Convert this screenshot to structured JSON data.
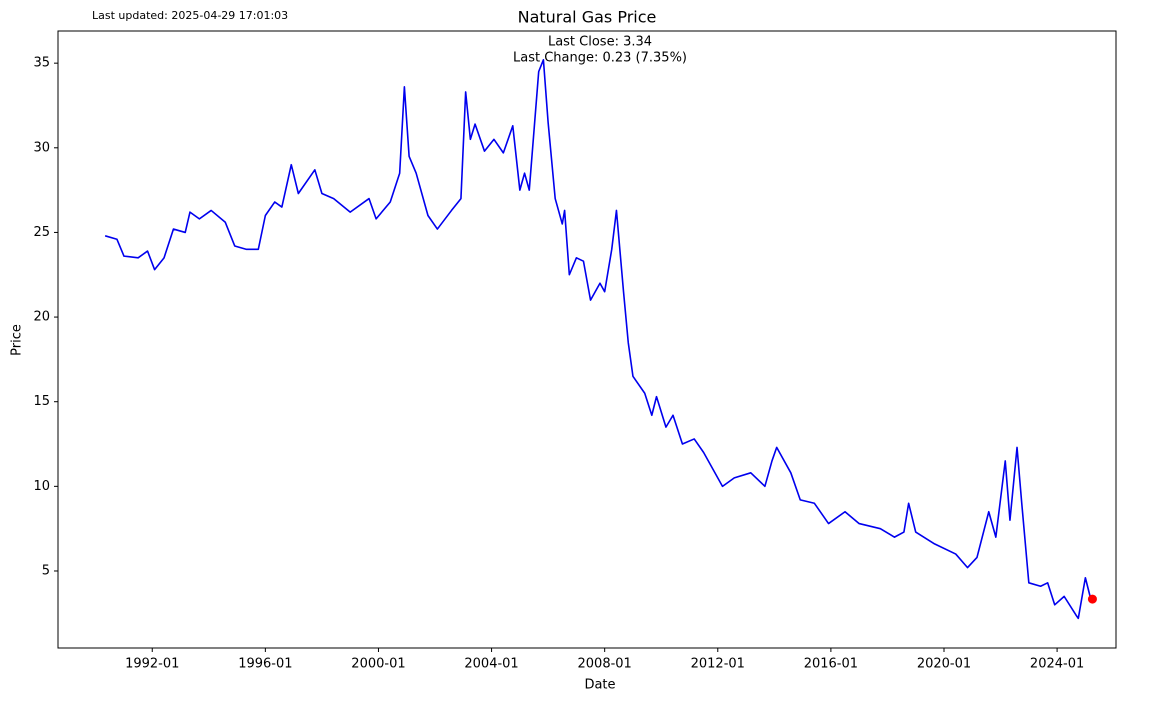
{
  "updated": "Last updated: 2025-04-29 17:01:03",
  "chart_data": {
    "type": "line",
    "title": "Natural Gas Price",
    "annotations": [
      "Last Close: 3.34",
      "Last Change: 0.23 (7.35%)"
    ],
    "x_label": "Date",
    "y_label": "Price",
    "x": [
      "1990-05",
      "1990-10",
      "1991-01",
      "1991-07",
      "1991-11",
      "1992-02",
      "1992-06",
      "1992-10",
      "1993-03",
      "1993-05",
      "1993-09",
      "1994-02",
      "1994-08",
      "1994-12",
      "1995-05",
      "1995-10",
      "1996-01",
      "1996-05",
      "1996-08",
      "1996-12",
      "1997-03",
      "1997-10",
      "1998-01",
      "1998-06",
      "1999-01",
      "1999-09",
      "1999-12",
      "2000-06",
      "2000-10",
      "2000-12",
      "2001-02",
      "2001-05",
      "2001-10",
      "2002-02",
      "2002-08",
      "2002-12",
      "2003-02",
      "2003-04",
      "2003-06",
      "2003-10",
      "2004-02",
      "2004-06",
      "2004-10",
      "2005-01",
      "2005-03",
      "2005-05",
      "2005-09",
      "2005-11",
      "2006-01",
      "2006-04",
      "2006-07",
      "2006-08",
      "2006-10",
      "2007-01",
      "2007-04",
      "2007-07",
      "2007-11",
      "2008-01",
      "2008-04",
      "2008-06",
      "2008-09",
      "2008-11",
      "2009-01",
      "2009-06",
      "2009-09",
      "2009-11",
      "2010-03",
      "2010-06",
      "2010-10",
      "2011-03",
      "2011-07",
      "2012-03",
      "2012-08",
      "2013-03",
      "2013-09",
      "2013-12",
      "2014-02",
      "2014-08",
      "2014-12",
      "2015-06",
      "2015-12",
      "2016-07",
      "2017-01",
      "2017-10",
      "2018-04",
      "2018-08",
      "2018-10",
      "2019-01",
      "2019-09",
      "2020-06",
      "2020-11",
      "2021-03",
      "2021-08",
      "2021-11",
      "2022-03",
      "2022-05",
      "2022-08",
      "2022-10",
      "2023-01",
      "2023-06",
      "2023-09",
      "2023-12",
      "2024-04",
      "2024-09",
      "2024-10",
      "2025-01",
      "2025-03",
      "2025-04"
    ],
    "series": [
      {
        "color": "#0000ee",
        "marker_color": "#ff0000",
        "values": [
          24.8,
          24.6,
          23.6,
          23.5,
          23.9,
          22.8,
          23.5,
          25.2,
          25.0,
          26.2,
          25.8,
          26.3,
          25.6,
          24.2,
          24.0,
          24.0,
          26.0,
          26.8,
          26.5,
          29.0,
          27.3,
          28.7,
          27.3,
          27.0,
          26.2,
          27.0,
          25.8,
          26.8,
          28.5,
          33.6,
          29.5,
          28.5,
          26.0,
          25.2,
          26.3,
          27.0,
          33.3,
          30.5,
          31.4,
          29.8,
          30.5,
          29.7,
          31.3,
          27.5,
          28.5,
          27.5,
          34.5,
          35.2,
          31.5,
          27.0,
          25.5,
          26.3,
          22.5,
          23.5,
          23.3,
          21.0,
          22.0,
          21.5,
          24.0,
          26.3,
          21.5,
          18.5,
          16.5,
          15.5,
          14.2,
          15.3,
          13.5,
          14.2,
          12.5,
          12.8,
          12.0,
          10.0,
          10.5,
          10.8,
          10.0,
          11.5,
          12.3,
          10.8,
          9.2,
          9.0,
          7.8,
          8.5,
          7.8,
          7.5,
          7.0,
          7.3,
          9.0,
          7.3,
          6.6,
          6.0,
          5.2,
          5.8,
          8.5,
          7.0,
          11.5,
          8.0,
          12.3,
          9.0,
          4.3,
          4.1,
          4.3,
          3.0,
          3.5,
          2.4,
          2.2,
          4.6,
          3.5,
          3.34
        ]
      }
    ],
    "xlim": [
      "1988-09",
      "2026-02"
    ],
    "xticks": [
      "1992-01",
      "1996-01",
      "2000-01",
      "2004-01",
      "2008-01",
      "2012-01",
      "2016-01",
      "2020-01",
      "2024-01"
    ],
    "ylim": [
      0.45,
      36.9
    ],
    "yticks": [
      5,
      10,
      15,
      20,
      25,
      30,
      35
    ]
  }
}
